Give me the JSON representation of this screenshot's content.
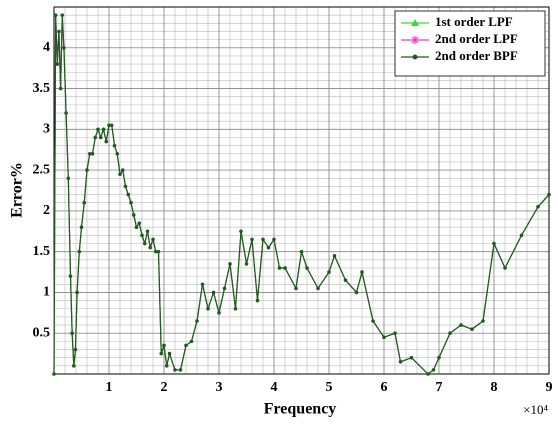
{
  "chart_data": {
    "type": "line",
    "xlabel": "Frequency",
    "ylabel": "Error%",
    "x_exponent": "×10⁴",
    "x": [
      0.0,
      0.03,
      0.06,
      0.09,
      0.12,
      0.15,
      0.18,
      0.22,
      0.26,
      0.3,
      0.33,
      0.36,
      0.39,
      0.42,
      0.46,
      0.5,
      0.55,
      0.6,
      0.65,
      0.7,
      0.75,
      0.8,
      0.85,
      0.9,
      0.95,
      1.0,
      1.05,
      1.1,
      1.15,
      1.2,
      1.25,
      1.3,
      1.35,
      1.4,
      1.45,
      1.5,
      1.55,
      1.6,
      1.65,
      1.7,
      1.75,
      1.8,
      1.85,
      1.9,
      1.95,
      2.0,
      2.05,
      2.1,
      2.2,
      2.3,
      2.4,
      2.5,
      2.6,
      2.7,
      2.8,
      2.9,
      3.0,
      3.1,
      3.2,
      3.3,
      3.4,
      3.5,
      3.6,
      3.7,
      3.8,
      3.9,
      4.0,
      4.1,
      4.2,
      4.4,
      4.5,
      4.6,
      4.8,
      5.0,
      5.1,
      5.3,
      5.5,
      5.6,
      5.8,
      6.0,
      6.2,
      6.3,
      6.5,
      6.8,
      6.9,
      7.0,
      7.2,
      7.4,
      7.6,
      7.8,
      8.0,
      8.2,
      8.5,
      8.8,
      9.0
    ],
    "series": [
      {
        "name": "1st order LPF",
        "color": "#33dd33",
        "marker": "triangle",
        "values": [
          0,
          4.4,
          3.8,
          4.2,
          3.5,
          4.4,
          4.0,
          3.2,
          2.4,
          1.2,
          0.5,
          0.1,
          0.3,
          1.0,
          1.5,
          1.8,
          2.1,
          2.5,
          2.7,
          2.7,
          2.9,
          3.0,
          2.9,
          3.0,
          2.85,
          3.05,
          3.05,
          2.8,
          2.7,
          2.45,
          2.5,
          2.3,
          2.2,
          2.1,
          1.95,
          1.8,
          1.85,
          1.7,
          1.6,
          1.75,
          1.55,
          1.65,
          1.5,
          1.5,
          0.25,
          0.35,
          0.1,
          0.25,
          0.05,
          0.05,
          0.35,
          0.4,
          0.65,
          1.1,
          0.8,
          1.0,
          0.75,
          1.05,
          1.35,
          0.8,
          1.75,
          1.35,
          1.65,
          0.9,
          1.65,
          1.55,
          1.65,
          1.3,
          1.3,
          1.05,
          1.5,
          1.3,
          1.05,
          1.25,
          1.45,
          1.15,
          1.0,
          1.25,
          0.65,
          0.45,
          0.5,
          0.15,
          0.2,
          0,
          0.05,
          0.2,
          0.5,
          0.6,
          0.55,
          0.65,
          1.6,
          1.3,
          1.7,
          2.05,
          2.2
        ]
      },
      {
        "name": "2nd order LPF",
        "color": "#ff33cc",
        "marker": "star",
        "values": [
          0,
          4.4,
          3.8,
          4.2,
          3.5,
          4.4,
          4.0,
          3.2,
          2.4,
          1.2,
          0.5,
          0.1,
          0.3,
          1.0,
          1.5,
          1.8,
          2.1,
          2.5,
          2.7,
          2.7,
          2.9,
          3.0,
          2.9,
          3.0,
          2.85,
          3.05,
          3.05,
          2.8,
          2.7,
          2.45,
          2.5,
          2.3,
          2.2,
          2.1,
          1.95,
          1.8,
          1.85,
          1.7,
          1.6,
          1.75,
          1.55,
          1.65,
          1.5,
          1.5,
          0.25,
          0.35,
          0.1,
          0.25,
          0.05,
          0.05,
          0.35,
          0.4,
          0.65,
          1.1,
          0.8,
          1.0,
          0.75,
          1.05,
          1.35,
          0.8,
          1.75,
          1.35,
          1.65,
          0.9,
          1.65,
          1.55,
          1.65,
          1.3,
          1.3,
          1.05,
          1.5,
          1.3,
          1.05,
          1.25,
          1.45,
          1.15,
          1.0,
          1.25,
          0.65,
          0.45,
          0.5,
          0.15,
          0.2,
          0,
          0.05,
          0.2,
          0.5,
          0.6,
          0.55,
          0.65,
          1.6,
          1.3,
          1.7,
          2.05,
          2.2
        ]
      },
      {
        "name": "2nd order BPF",
        "color": "#1f5a1f",
        "marker": "dot",
        "values": [
          0,
          4.4,
          3.8,
          4.2,
          3.5,
          4.4,
          4.0,
          3.2,
          2.4,
          1.2,
          0.5,
          0.1,
          0.3,
          1.0,
          1.5,
          1.8,
          2.1,
          2.5,
          2.7,
          2.7,
          2.9,
          3.0,
          2.9,
          3.0,
          2.85,
          3.05,
          3.05,
          2.8,
          2.7,
          2.45,
          2.5,
          2.3,
          2.2,
          2.1,
          1.95,
          1.8,
          1.85,
          1.7,
          1.6,
          1.75,
          1.55,
          1.65,
          1.5,
          1.5,
          0.25,
          0.35,
          0.1,
          0.25,
          0.05,
          0.05,
          0.35,
          0.4,
          0.65,
          1.1,
          0.8,
          1.0,
          0.75,
          1.05,
          1.35,
          0.8,
          1.75,
          1.35,
          1.65,
          0.9,
          1.65,
          1.55,
          1.65,
          1.3,
          1.3,
          1.05,
          1.5,
          1.3,
          1.05,
          1.25,
          1.45,
          1.15,
          1.0,
          1.25,
          0.65,
          0.45,
          0.5,
          0.15,
          0.2,
          0,
          0.05,
          0.2,
          0.5,
          0.6,
          0.55,
          0.65,
          1.6,
          1.3,
          1.7,
          2.05,
          2.2
        ]
      }
    ],
    "xlim": [
      0,
      9
    ],
    "xticks": [
      1,
      2,
      3,
      4,
      5,
      6,
      7,
      8,
      9
    ],
    "ylim": [
      0,
      4.5
    ],
    "yticks": [
      0.5,
      1,
      1.5,
      2,
      2.5,
      3,
      3.5,
      4
    ],
    "grid": true,
    "minor_grid": true,
    "legend": "upper right"
  }
}
